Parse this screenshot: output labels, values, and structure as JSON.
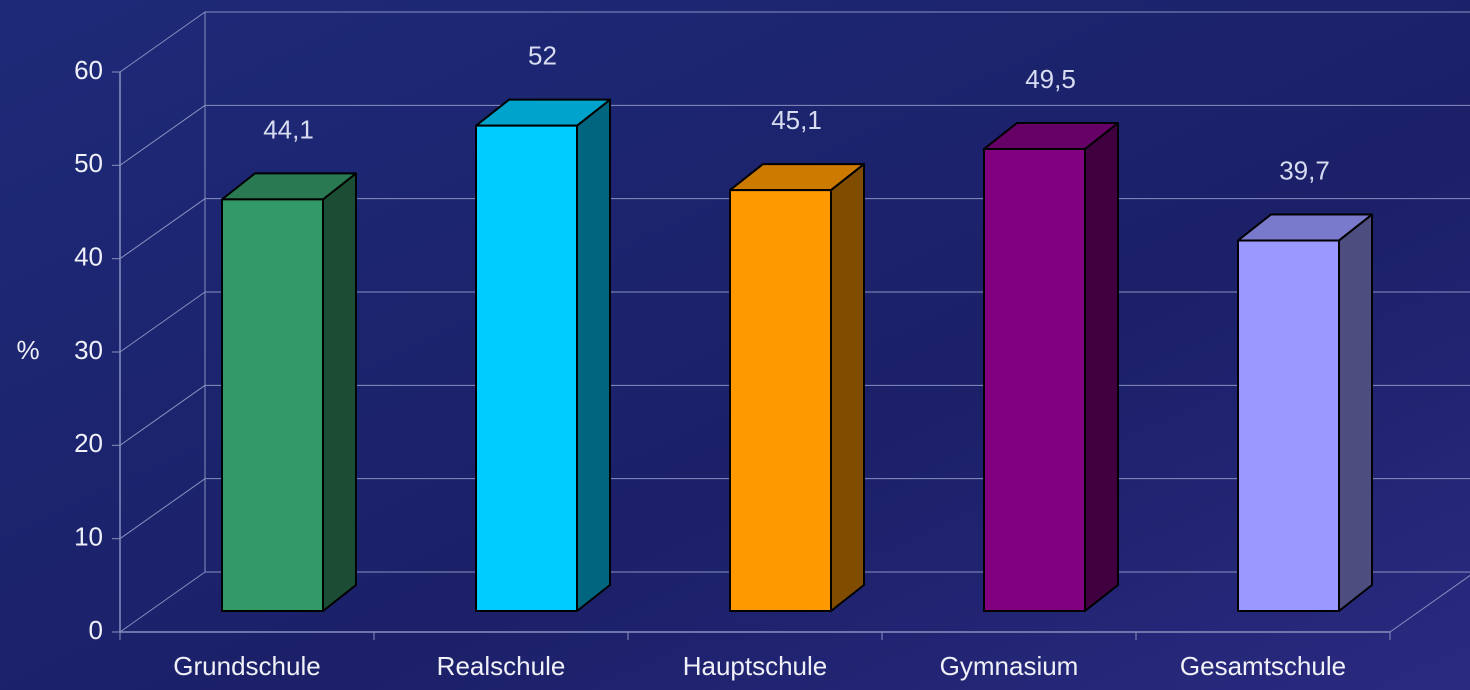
{
  "chart_data": {
    "type": "bar3d",
    "categories": [
      "Grundschule",
      "Realschule",
      "Hauptschule",
      "Gymnasium",
      "Gesamtschule"
    ],
    "values": [
      44.1,
      52,
      45.1,
      49.5,
      39.7
    ],
    "value_labels": [
      "44,1",
      "52",
      "45,1",
      "49,5",
      "39,7"
    ],
    "colors": [
      "#339966",
      "#00ccff",
      "#ff9900",
      "#800080",
      "#9999ff"
    ],
    "y_label": "%",
    "ylim": [
      0,
      60
    ],
    "yticks": [
      0,
      10,
      20,
      30,
      40,
      50,
      60
    ],
    "grid": true
  }
}
